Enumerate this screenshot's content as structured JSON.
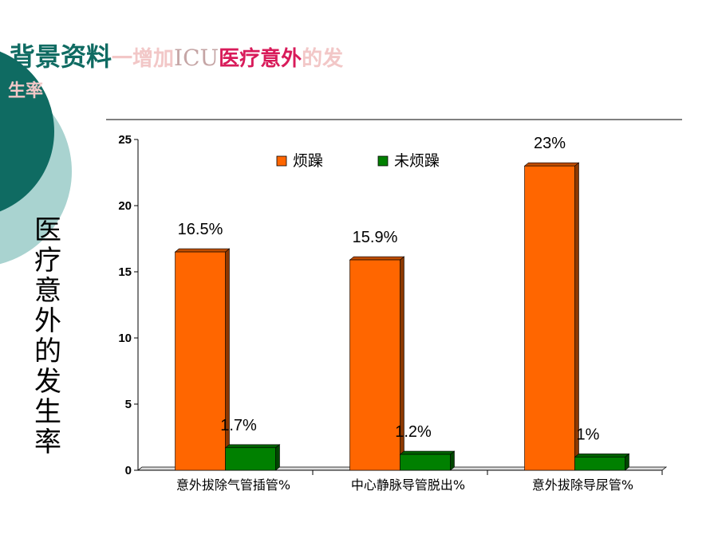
{
  "slide": {
    "title_main": "背景资料",
    "title_dash": "一增加",
    "title_icu": "ICU",
    "title_red": "医疗意外",
    "title_tail": "的发",
    "title_line2": "生率"
  },
  "colors": {
    "teal_dark": "#0f6b62",
    "teal_light": "#a9d3d0",
    "bar_agitated": "#ff6600",
    "bar_not_agitated": "#008000"
  },
  "chart_data": {
    "type": "bar",
    "categories": [
      "意外拔除气管插管%",
      "中心静脉导管脱出%",
      "意外拔除导尿管%"
    ],
    "series": [
      {
        "name": "烦躁",
        "values": [
          16.5,
          15.9,
          23
        ],
        "labels": [
          "16.5%",
          "15.9%",
          "23%"
        ],
        "color": "#ff6600"
      },
      {
        "name": "未烦躁",
        "values": [
          1.7,
          1.2,
          1
        ],
        "labels": [
          "1.7%",
          "1.2%",
          "1%"
        ],
        "color": "#008000"
      }
    ],
    "ylabel": "医疗意外的发生率",
    "ylim": [
      0,
      25
    ],
    "yticks": [
      "0",
      "5",
      "10",
      "15",
      "20",
      "25"
    ],
    "legend_position": "top"
  }
}
